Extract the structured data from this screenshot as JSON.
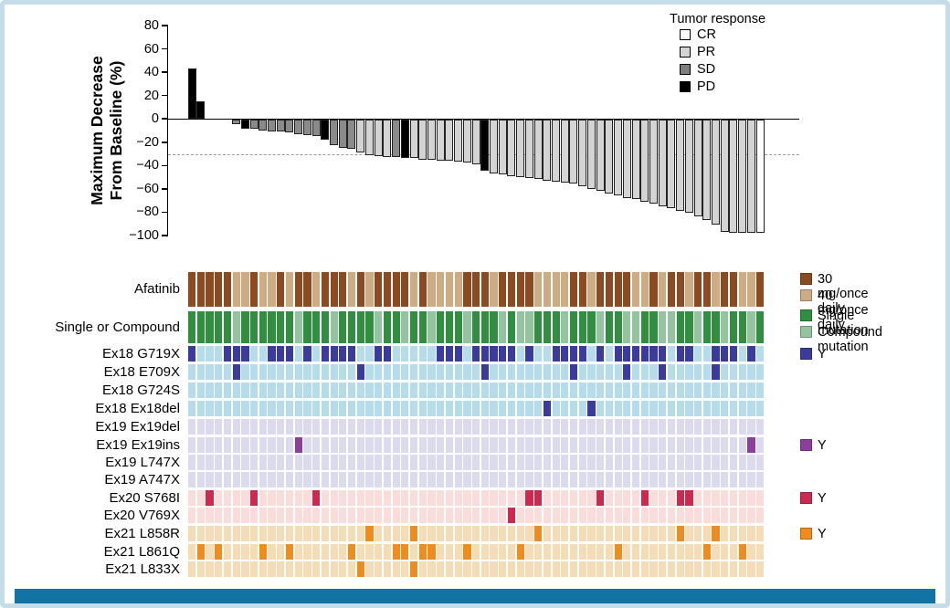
{
  "chart_data": {
    "type": "bar",
    "subtype": "waterfall-with-oncoprint",
    "n_patients": 65,
    "ylabel": [
      "Maximum Decrease",
      "From Baseline (%)"
    ],
    "ylim": [
      -100,
      80
    ],
    "yticks": [
      80,
      60,
      40,
      20,
      0,
      -20,
      -40,
      -60,
      -80,
      -100
    ],
    "reference_line_pct": -30,
    "tumor_response_legend_title": "Tumor response",
    "tumor_response_levels": [
      {
        "code": "C",
        "label": "CR",
        "color": "#ffffff"
      },
      {
        "code": "P",
        "label": "PR",
        "color": "#d4d4d4"
      },
      {
        "code": "S",
        "label": "SD",
        "color": "#7e7e7e"
      },
      {
        "code": "D",
        "label": "PD",
        "color": "#000000"
      }
    ],
    "bar_colors": {
      "C": "#ffffff",
      "P": "#d4d4d4",
      "S": "#8a8a8a",
      "D": "#000000"
    },
    "max_decrease_values": [
      43,
      15,
      0,
      0,
      0,
      -4,
      -8,
      -8,
      -9,
      -10,
      -10,
      -11,
      -12,
      -13,
      -14,
      -17,
      -22,
      -24,
      -25,
      -28,
      -30,
      -31,
      -32,
      -32,
      -33,
      -33,
      -34,
      -34,
      -35,
      -35,
      -36,
      -37,
      -38,
      -44,
      -46,
      -47,
      -48,
      -49,
      -50,
      -51,
      -52,
      -53,
      -54,
      -55,
      -57,
      -59,
      -61,
      -63,
      -65,
      -67,
      -68,
      -70,
      -72,
      -74,
      -76,
      -78,
      -80,
      -83,
      -86,
      -90,
      -96,
      -97,
      -97,
      -97,
      -97
    ],
    "tumor_response_per_patient": "DDSSSSDSSSSSSSSDSSSPPPPSDPPPPPPPPDPPPPPPPPPPPPPPPPPPPPPPPPPPPPPPC",
    "oncoprint": {
      "dose_row": {
        "label": "Afatinib",
        "codes": "BBBBBTTBTTBTBBTBBBTBTBBBBTBTTTTBBBTBBBBTTTTBBTBBBBTTBTBBTBBTBBTTB",
        "legend": [
          {
            "code": "B",
            "label": "30 mg/once daily",
            "color": "#8c4a21"
          },
          {
            "code": "T",
            "label": "40 mg/once daily",
            "color": "#cdab83"
          }
        ]
      },
      "mutation_type_row": {
        "label": "Single or Compound",
        "codes": "SSSSSCSSSSSSCSSSCSSSSCSSCSSCSSSCSSSCSCCSSSCSSSCSSCCSSCCSSCSSCSSCS",
        "legend": [
          {
            "code": "S",
            "label": "Single mutation",
            "color": "#2f8f3f"
          },
          {
            "code": "C",
            "label": "Compound mutation",
            "color": "#94c39f"
          }
        ]
      },
      "mutation_rows": [
        {
          "label": "Ex18 G719X",
          "bg": "#b5dcea",
          "y_color": "#3b3b9d",
          "y_cols": [
            0,
            4,
            5,
            6,
            9,
            10,
            11,
            13,
            15,
            16,
            17,
            18,
            21,
            22,
            28,
            29,
            30,
            32,
            33,
            34,
            35,
            36,
            38,
            41,
            42,
            43,
            44,
            46,
            48,
            49,
            50,
            51,
            52,
            53,
            55,
            56,
            59,
            60,
            61,
            63
          ],
          "legend_y": true
        },
        {
          "label": "Ex18 E709X",
          "bg": "#b5dcea",
          "y_color": "#3b3b9d",
          "y_cols": [
            5,
            19,
            33,
            43,
            49,
            53,
            59
          ],
          "legend_y": false
        },
        {
          "label": "Ex18 G724S",
          "bg": "#b5dcea",
          "y_color": "#3b3b9d",
          "y_cols": [],
          "legend_y": false
        },
        {
          "label": "Ex18 Ex18del",
          "bg": "#b5dcea",
          "y_color": "#3b3b9d",
          "y_cols": [
            40,
            45
          ],
          "legend_y": false
        },
        {
          "label": "Ex19 Ex19del",
          "bg": "#dcdaee",
          "y_color": "#8d3d9e",
          "y_cols": [],
          "legend_y": false
        },
        {
          "label": "Ex19 Ex19ins",
          "bg": "#dcdaee",
          "y_color": "#8d3d9e",
          "y_cols": [
            12,
            63
          ],
          "legend_y": true
        },
        {
          "label": "Ex19 L747X",
          "bg": "#dcdaee",
          "y_color": "#8d3d9e",
          "y_cols": [],
          "legend_y": false
        },
        {
          "label": "Ex19 A747X",
          "bg": "#dcdaee",
          "y_color": "#8d3d9e",
          "y_cols": [],
          "legend_y": false
        },
        {
          "label": "Ex20 S768I",
          "bg": "#fadcda",
          "y_color": "#cd2950",
          "y_cols": [
            2,
            7,
            14,
            38,
            39,
            46,
            51,
            55,
            56
          ],
          "legend_y": true
        },
        {
          "label": "Ex20 V769X",
          "bg": "#fadcda",
          "y_color": "#cd2950",
          "y_cols": [
            36
          ],
          "legend_y": false
        },
        {
          "label": "Ex21 L858R",
          "bg": "#f3dcb6",
          "y_color": "#f08c1e",
          "y_cols": [
            20,
            25,
            39,
            55,
            59
          ],
          "legend_y": true
        },
        {
          "label": "Ex21 L861Q",
          "bg": "#f3dcb6",
          "y_color": "#f08c1e",
          "y_cols": [
            1,
            3,
            8,
            11,
            18,
            23,
            24,
            26,
            27,
            31,
            37,
            48,
            58,
            62
          ],
          "legend_y": false
        },
        {
          "label": "Ex21 L833X",
          "bg": "#f3dcb6",
          "y_color": "#f08c1e",
          "y_cols": [
            19,
            25
          ],
          "legend_y": false
        }
      ],
      "y_legend_label": "Y"
    },
    "frame": {
      "border_color": "#c5dce9",
      "bottom_bar_color": "#1273a5",
      "background": "#ffffff"
    }
  }
}
